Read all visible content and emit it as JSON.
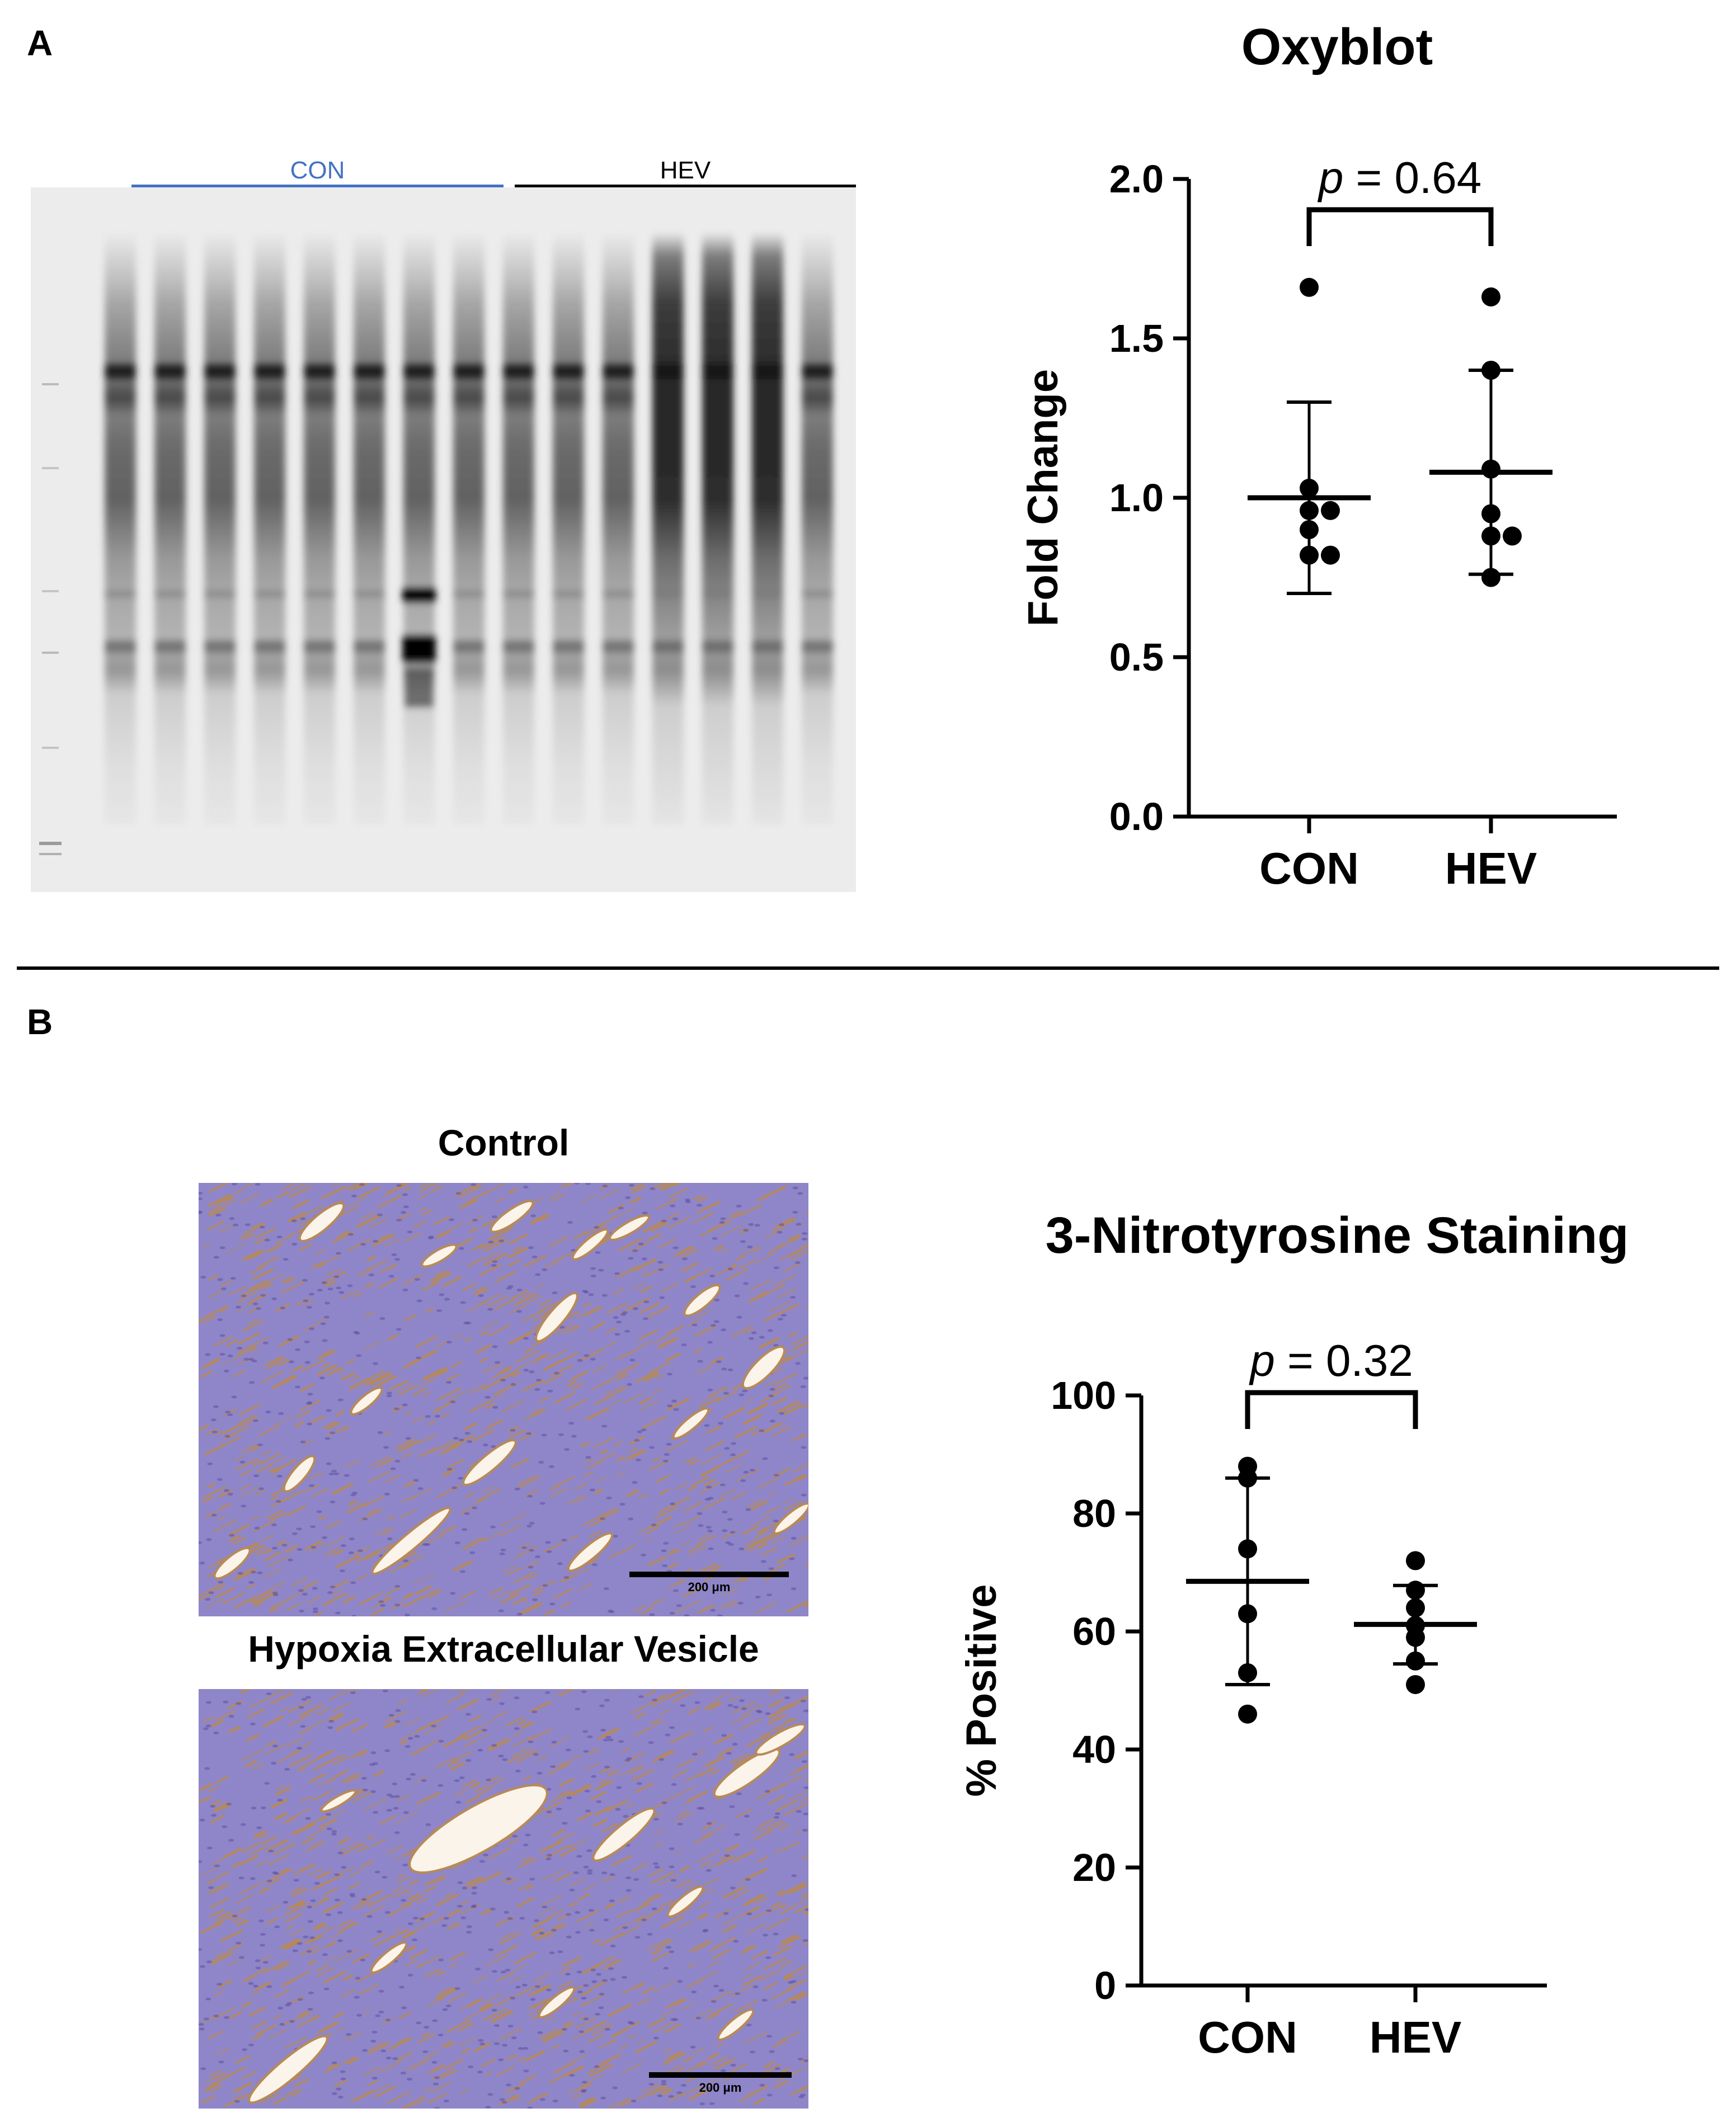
{
  "panels": {
    "a_label": "A",
    "b_label": "B"
  },
  "blot": {
    "con_label": "CON",
    "hev_label": "HEV",
    "con_color": "#4472c4",
    "hev_color": "#000000"
  },
  "micrographs": {
    "top_caption": "Control",
    "bottom_caption": "Hypoxia Extracellular Vesicle",
    "scale_label": "200 μm",
    "tissue_color": "#8e86c8",
    "stain_color": "#b98a55"
  },
  "chart_data": [
    {
      "type": "scatter",
      "title": "Oxyblot",
      "ylabel": "Fold Change",
      "xlabel": "",
      "ylim": [
        0,
        2.0
      ],
      "yticks": [
        "0.0",
        "0.5",
        "1.0",
        "1.5",
        "2.0"
      ],
      "categories": [
        "CON",
        "HEV"
      ],
      "annotation": {
        "p_symbol": "p",
        "p_text": "= 0.64"
      },
      "series": [
        {
          "category": "CON",
          "values": [
            1.66,
            1.03,
            0.96,
            0.96,
            0.9,
            0.82,
            0.82
          ],
          "mean": 1.0,
          "sd_upper": 1.3,
          "sd_lower": 0.7
        },
        {
          "category": "HEV",
          "values": [
            1.63,
            1.4,
            1.09,
            0.95,
            0.88,
            0.88,
            0.75
          ],
          "mean": 1.08,
          "sd_upper": 1.4,
          "sd_lower": 0.76
        }
      ]
    },
    {
      "type": "scatter",
      "title": "3-Nitrotyrosine Staining",
      "ylabel": "% Positive",
      "xlabel": "",
      "ylim": [
        0,
        100
      ],
      "yticks": [
        "0",
        "20",
        "40",
        "60",
        "80",
        "100"
      ],
      "categories": [
        "CON",
        "HEV"
      ],
      "annotation": {
        "p_symbol": "p",
        "p_text": "= 0.32"
      },
      "series": [
        {
          "category": "CON",
          "values": [
            88,
            86,
            74,
            63,
            53,
            46
          ],
          "mean": 68.5,
          "sd_upper": 86,
          "sd_lower": 51
        },
        {
          "category": "HEV",
          "values": [
            72,
            67,
            64,
            61,
            59,
            55,
            51
          ],
          "mean": 61.2,
          "sd_upper": 67.8,
          "sd_lower": 54.5
        }
      ]
    }
  ]
}
